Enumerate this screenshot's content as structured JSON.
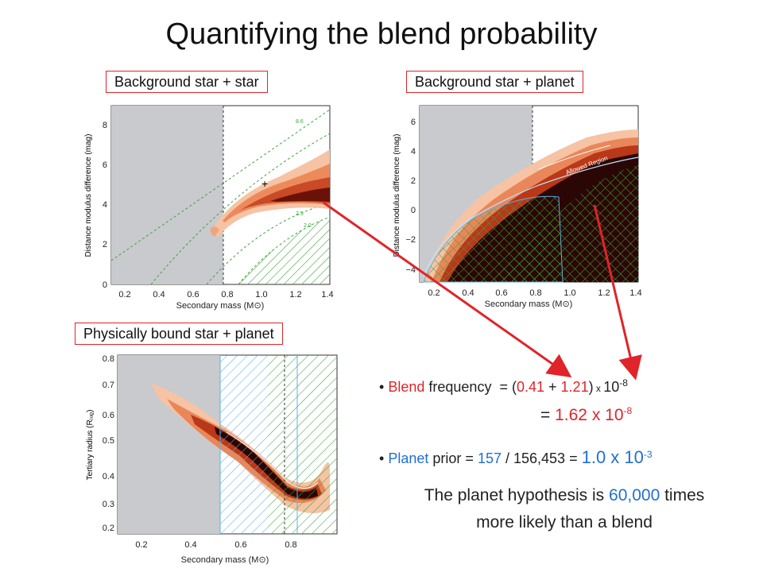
{
  "title": "Quantifying the blend probability",
  "panels": {
    "star_star": {
      "label": "Background star + star",
      "ylabel": "Distance modulus difference (mag)",
      "xlabel": "Secondary mass (M⊙)",
      "xticks": [
        "0.2",
        "0.4",
        "0.6",
        "0.8",
        "1.0",
        "1.2",
        "1.4"
      ],
      "yticks": [
        "0",
        "2",
        "4",
        "6",
        "8"
      ],
      "contours": [
        "8.6",
        "2.5",
        "2.0"
      ]
    },
    "star_planet": {
      "label": "Background star + planet",
      "ylabel": "Distance modulus difference (mag)",
      "xlabel": "Secondary mass (M⊙)",
      "xticks": [
        "0.2",
        "0.4",
        "0.6",
        "0.8",
        "1.0",
        "1.2",
        "1.4"
      ],
      "yticks": [
        "−4",
        "−2",
        "0",
        "2",
        "4",
        "6"
      ],
      "annotation": "Allowed Region"
    },
    "bound": {
      "label": "Physically bound star + planet",
      "ylabel": "Tertiary radius (Rⱼᵤᵨ)",
      "xlabel": "Secondary mass (M⊙)",
      "xticks": [
        "0.2",
        "0.4",
        "0.6",
        "0.8"
      ],
      "yticks": [
        "0.2",
        "0.3",
        "0.4",
        "0.5",
        "0.6",
        "0.7",
        "0.8"
      ]
    }
  },
  "blend": {
    "bullet": "•",
    "word1": "Blend",
    "word2": "frequency",
    "eq": "= (",
    "v1": "0.41",
    "plus": " + ",
    "v2": "1.21",
    "close": ")",
    "times": " x ",
    "base": "10",
    "exp": "-8",
    "result_eq": "= ",
    "result_val": "1.62 x 10",
    "result_exp": "-8"
  },
  "prior": {
    "bullet": "•",
    "word1": "Planet",
    "word2": "prior =",
    "num": "157",
    "slash": " / ",
    "den": "156,453",
    "eq": " = ",
    "val": "1.0 x 10",
    "exp": "-3"
  },
  "conclusion": {
    "pre": "The planet hypothesis is ",
    "num": "60,000",
    "post": " times",
    "line2": "more likely than a blend"
  },
  "colors": {
    "accent_red": "#e0242a",
    "accent_blue": "#1f6fd6"
  }
}
